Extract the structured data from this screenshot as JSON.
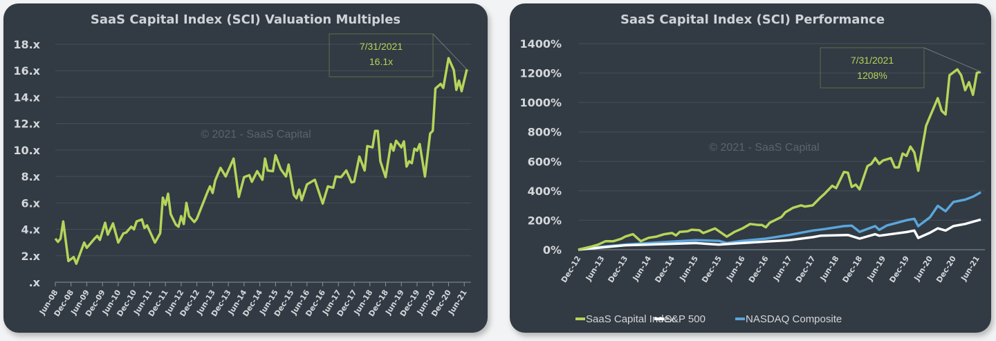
{
  "colors": {
    "panel": "#323a43",
    "grid": "#46505a",
    "sci": "#b5d55a",
    "sp500": "#ffffff",
    "nasdaq": "#5aa6db",
    "annotation": "#b6d45a"
  },
  "chart_data": [
    {
      "type": "line",
      "title": "SaaS Capital Index (SCI) Valuation Multiples",
      "watermark": "© 2021 - SaaS Capital",
      "ylim": [
        0,
        18
      ],
      "yticks": [
        ".x",
        "2.x",
        "4.x",
        "6.x",
        "8.x",
        "10.x",
        "12.x",
        "14.x",
        "16.x",
        "18.x"
      ],
      "xlim": [
        "2008-06",
        "2021-07"
      ],
      "xticks": [
        "Jun-08",
        "Dec-08",
        "Jun-09",
        "Dec-09",
        "Jun-10",
        "Dec-10",
        "Jun-11",
        "Dec-11",
        "Jun-12",
        "Dec-12",
        "Jun-13",
        "Dec-13",
        "Jun-14",
        "Dec-14",
        "Jun-15",
        "Dec-15",
        "Jun-16",
        "Dec-16",
        "Jun-17",
        "Dec-17",
        "Jun-18",
        "Dec-18",
        "Jun-19",
        "Dec-19",
        "Jun-20",
        "Dec-20",
        "Jun-21"
      ],
      "grid": true,
      "annotation": {
        "date": "7/31/2021",
        "value": "16.1x"
      },
      "series": [
        {
          "points": [
            [
              "2008-06",
              3.3
            ],
            [
              "2008-07",
              3.05
            ],
            [
              "2008-08",
              3.3
            ],
            [
              "2008-09",
              4.6
            ],
            [
              "2008-11",
              1.6
            ],
            [
              "2009-01",
              1.9
            ],
            [
              "2009-02",
              1.4
            ],
            [
              "2009-05",
              3.0
            ],
            [
              "2009-06",
              2.6
            ],
            [
              "2009-09",
              3.3
            ],
            [
              "2009-10",
              3.5
            ],
            [
              "2009-11",
              3.2
            ],
            [
              "2010-01",
              4.5
            ],
            [
              "2010-02",
              3.6
            ],
            [
              "2010-04",
              4.45
            ],
            [
              "2010-06",
              3.0
            ],
            [
              "2010-08",
              3.7
            ],
            [
              "2010-09",
              3.75
            ],
            [
              "2010-11",
              4.2
            ],
            [
              "2010-12",
              4.0
            ],
            [
              "2011-01",
              4.6
            ],
            [
              "2011-03",
              4.75
            ],
            [
              "2011-04",
              4.1
            ],
            [
              "2011-05",
              4.3
            ],
            [
              "2011-08",
              3.0
            ],
            [
              "2011-10",
              3.7
            ],
            [
              "2011-11",
              6.4
            ],
            [
              "2011-12",
              5.85
            ],
            [
              "2012-01",
              6.7
            ],
            [
              "2012-02",
              5.15
            ],
            [
              "2012-04",
              4.35
            ],
            [
              "2012-05",
              4.2
            ],
            [
              "2012-06",
              5.0
            ],
            [
              "2012-07",
              4.4
            ],
            [
              "2012-08",
              6.0
            ],
            [
              "2012-09",
              5.0
            ],
            [
              "2012-11",
              4.55
            ],
            [
              "2012-12",
              4.8
            ],
            [
              "2013-04",
              6.8
            ],
            [
              "2013-05",
              7.25
            ],
            [
              "2013-06",
              6.75
            ],
            [
              "2013-07",
              7.7
            ],
            [
              "2013-09",
              8.65
            ],
            [
              "2013-11",
              8.0
            ],
            [
              "2014-02",
              9.35
            ],
            [
              "2014-04",
              6.45
            ],
            [
              "2014-06",
              7.95
            ],
            [
              "2014-08",
              8.1
            ],
            [
              "2014-09",
              7.6
            ],
            [
              "2014-11",
              8.4
            ],
            [
              "2015-01",
              7.75
            ],
            [
              "2015-02",
              9.35
            ],
            [
              "2015-03",
              8.45
            ],
            [
              "2015-05",
              8.4
            ],
            [
              "2015-06",
              9.6
            ],
            [
              "2015-08",
              8.55
            ],
            [
              "2015-10",
              8.0
            ],
            [
              "2015-11",
              8.9
            ],
            [
              "2016-01",
              6.6
            ],
            [
              "2016-02",
              6.35
            ],
            [
              "2016-03",
              7.0
            ],
            [
              "2016-04",
              6.2
            ],
            [
              "2016-06",
              7.4
            ],
            [
              "2016-09",
              7.75
            ],
            [
              "2016-12",
              5.95
            ],
            [
              "2017-02",
              7.25
            ],
            [
              "2017-04",
              7.15
            ],
            [
              "2017-05",
              8.0
            ],
            [
              "2017-07",
              7.95
            ],
            [
              "2017-09",
              8.45
            ],
            [
              "2017-11",
              7.55
            ],
            [
              "2017-12",
              7.6
            ],
            [
              "2018-02",
              9.5
            ],
            [
              "2018-04",
              8.45
            ],
            [
              "2018-05",
              10.3
            ],
            [
              "2018-07",
              10.2
            ],
            [
              "2018-08",
              11.45
            ],
            [
              "2018-09",
              11.45
            ],
            [
              "2018-10",
              9.15
            ],
            [
              "2018-12",
              7.95
            ],
            [
              "2019-02",
              10.45
            ],
            [
              "2019-03",
              9.95
            ],
            [
              "2019-04",
              10.7
            ],
            [
              "2019-06",
              10.2
            ],
            [
              "2019-07",
              10.65
            ],
            [
              "2019-08",
              8.75
            ],
            [
              "2019-09",
              9.15
            ],
            [
              "2019-10",
              9.0
            ],
            [
              "2019-11",
              10.1
            ],
            [
              "2019-12",
              9.95
            ],
            [
              "2020-01",
              10.45
            ],
            [
              "2020-03",
              8.0
            ],
            [
              "2020-05",
              11.25
            ],
            [
              "2020-06",
              11.45
            ],
            [
              "2020-07",
              14.65
            ],
            [
              "2020-09",
              15.0
            ],
            [
              "2020-10",
              14.7
            ],
            [
              "2020-12",
              16.95
            ],
            [
              "2021-02",
              16.05
            ],
            [
              "2021-03",
              14.55
            ],
            [
              "2021-04",
              15.25
            ],
            [
              "2021-05",
              14.45
            ],
            [
              "2021-07",
              16.1
            ]
          ]
        }
      ]
    },
    {
      "type": "line",
      "title": "SaaS Capital Index (SCI) Performance",
      "watermark": "© 2021 - SaaS Capital",
      "ylim": [
        0,
        1400
      ],
      "yticks": [
        "0%",
        "200%",
        "400%",
        "600%",
        "800%",
        "1000%",
        "1200%",
        "1400%"
      ],
      "xlim": [
        "2012-12",
        "2021-07"
      ],
      "xticks": [
        "Dec-12",
        "Jun-13",
        "Dec-13",
        "Jun-14",
        "Dec-14",
        "Jun-15",
        "Dec-15",
        "Jun-16",
        "Dec-16",
        "Jun-17",
        "Dec-17",
        "Jun-18",
        "Dec-18",
        "Jun-19",
        "Dec-19",
        "Jun-20",
        "Dec-20",
        "Jun-21"
      ],
      "grid": true,
      "legend": "bottom",
      "annotation": {
        "date": "7/31/2021",
        "value": "1208%"
      },
      "series": [
        {
          "name": "SaaS Capital Index",
          "color": "#b5d55a",
          "points": [
            [
              "2012-12",
              0
            ],
            [
              "2013-03",
              19
            ],
            [
              "2013-05",
              34
            ],
            [
              "2013-07",
              58
            ],
            [
              "2013-09",
              58
            ],
            [
              "2013-11",
              74
            ],
            [
              "2013-12",
              89
            ],
            [
              "2014-02",
              105
            ],
            [
              "2014-04",
              58
            ],
            [
              "2014-06",
              81
            ],
            [
              "2014-08",
              89
            ],
            [
              "2014-10",
              105
            ],
            [
              "2014-12",
              113
            ],
            [
              "2015-01",
              97
            ],
            [
              "2015-02",
              121
            ],
            [
              "2015-04",
              125
            ],
            [
              "2015-05",
              136
            ],
            [
              "2015-07",
              132
            ],
            [
              "2015-08",
              113
            ],
            [
              "2015-11",
              144
            ],
            [
              "2016-02",
              89
            ],
            [
              "2016-04",
              121
            ],
            [
              "2016-06",
              144
            ],
            [
              "2016-08",
              175
            ],
            [
              "2016-10",
              168
            ],
            [
              "2016-11",
              168
            ],
            [
              "2016-12",
              152
            ],
            [
              "2017-01",
              183
            ],
            [
              "2017-04",
              222
            ],
            [
              "2017-05",
              254
            ],
            [
              "2017-07",
              285
            ],
            [
              "2017-09",
              301
            ],
            [
              "2017-10",
              293
            ],
            [
              "2017-12",
              301
            ],
            [
              "2018-02",
              355
            ],
            [
              "2018-03",
              379
            ],
            [
              "2018-05",
              434
            ],
            [
              "2018-06",
              418
            ],
            [
              "2018-08",
              528
            ],
            [
              "2018-09",
              523
            ],
            [
              "2018-10",
              426
            ],
            [
              "2018-11",
              442
            ],
            [
              "2018-12",
              410
            ],
            [
              "2019-02",
              567
            ],
            [
              "2019-03",
              583
            ],
            [
              "2019-04",
              622
            ],
            [
              "2019-05",
              583
            ],
            [
              "2019-06",
              606
            ],
            [
              "2019-08",
              622
            ],
            [
              "2019-09",
              559
            ],
            [
              "2019-10",
              559
            ],
            [
              "2019-11",
              653
            ],
            [
              "2019-12",
              637
            ],
            [
              "2020-01",
              700
            ],
            [
              "2020-02",
              661
            ],
            [
              "2020-03",
              536
            ],
            [
              "2020-05",
              841
            ],
            [
              "2020-06",
              904
            ],
            [
              "2020-08",
              1029
            ],
            [
              "2020-09",
              943
            ],
            [
              "2020-10",
              919
            ],
            [
              "2020-11",
              1185
            ],
            [
              "2021-01",
              1225
            ],
            [
              "2021-02",
              1185
            ],
            [
              "2021-03",
              1084
            ],
            [
              "2021-04",
              1138
            ],
            [
              "2021-05",
              1052
            ],
            [
              "2021-06",
              1201
            ],
            [
              "2021-07",
              1208
            ]
          ]
        },
        {
          "name": "S&P 500",
          "color": "#ffffff",
          "points": [
            [
              "2012-12",
              0
            ],
            [
              "2013-06",
              15
            ],
            [
              "2013-12",
              30
            ],
            [
              "2014-06",
              35
            ],
            [
              "2014-12",
              40
            ],
            [
              "2015-06",
              45
            ],
            [
              "2015-12",
              35
            ],
            [
              "2016-06",
              45
            ],
            [
              "2016-12",
              55
            ],
            [
              "2017-06",
              65
            ],
            [
              "2017-12",
              85
            ],
            [
              "2018-02",
              95
            ],
            [
              "2018-09",
              100
            ],
            [
              "2018-12",
              75
            ],
            [
              "2019-04",
              105
            ],
            [
              "2019-05",
              95
            ],
            [
              "2019-12",
              120
            ],
            [
              "2020-02",
              130
            ],
            [
              "2020-03",
              80
            ],
            [
              "2020-06",
              115
            ],
            [
              "2020-08",
              145
            ],
            [
              "2020-10",
              130
            ],
            [
              "2020-12",
              160
            ],
            [
              "2021-03",
              175
            ],
            [
              "2021-07",
              205
            ]
          ]
        },
        {
          "name": "NASDAQ Composite",
          "color": "#5aa6db",
          "points": [
            [
              "2012-12",
              0
            ],
            [
              "2013-06",
              20
            ],
            [
              "2013-12",
              35
            ],
            [
              "2014-06",
              45
            ],
            [
              "2014-12",
              55
            ],
            [
              "2015-06",
              65
            ],
            [
              "2015-12",
              60
            ],
            [
              "2016-02",
              45
            ],
            [
              "2016-06",
              60
            ],
            [
              "2016-12",
              75
            ],
            [
              "2017-06",
              100
            ],
            [
              "2017-12",
              130
            ],
            [
              "2018-03",
              140
            ],
            [
              "2018-08",
              160
            ],
            [
              "2018-10",
              163
            ],
            [
              "2018-12",
              121
            ],
            [
              "2019-04",
              160
            ],
            [
              "2019-05",
              135
            ],
            [
              "2019-07",
              165
            ],
            [
              "2019-12",
              200
            ],
            [
              "2020-02",
              210
            ],
            [
              "2020-03",
              160
            ],
            [
              "2020-06",
              220
            ],
            [
              "2020-08",
              298
            ],
            [
              "2020-10",
              261
            ],
            [
              "2020-12",
              324
            ],
            [
              "2021-03",
              340
            ],
            [
              "2021-05",
              360
            ],
            [
              "2021-07",
              390
            ]
          ]
        }
      ]
    }
  ]
}
